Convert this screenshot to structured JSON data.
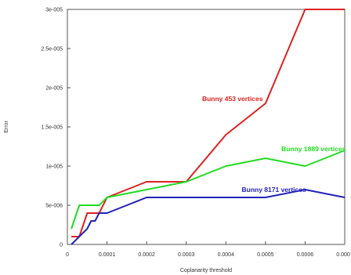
{
  "chart_data": {
    "type": "line",
    "title": "",
    "xlabel": "Coplanarity threshold",
    "ylabel": "Error",
    "xlim": [
      0,
      0.0007
    ],
    "ylim": [
      0,
      3e-05
    ],
    "grid": false,
    "x_ticks": [
      0,
      0.0001,
      0.0002,
      0.0003,
      0.0004,
      0.0005,
      0.0006,
      0.0007
    ],
    "x_tick_labels": [
      "0",
      "0.0001",
      "0.0002",
      "0.0003",
      "0.0004",
      "0.0005",
      "0.0006",
      "0.0007"
    ],
    "y_ticks": [
      0,
      5e-06,
      1e-05,
      1.5e-05,
      2e-05,
      2.5e-05,
      3e-05
    ],
    "y_tick_labels": [
      "0",
      "5e-006",
      "1e-005",
      "1.5e-005",
      "2e-005",
      "2.5e-005",
      "3e-005"
    ],
    "series": [
      {
        "name": "Bunny 453 vertices",
        "color": "#dd2222",
        "label_at": [
          0.00034,
          1.83e-05
        ],
        "x": [
          1e-05,
          3e-05,
          5e-05,
          8e-05,
          0.0001,
          0.0002,
          0.0003,
          0.0004,
          0.0005,
          0.0006,
          0.0007
        ],
        "y": [
          1e-06,
          1e-06,
          4e-06,
          4e-06,
          6e-06,
          8e-06,
          8e-06,
          1.4e-05,
          1.8e-05,
          3e-05,
          3e-05
        ]
      },
      {
        "name": "Bunny 1889 vertices",
        "color": "#22dd22",
        "label_at": [
          0.00054,
          1.19e-05
        ],
        "x": [
          1e-05,
          3e-05,
          6e-05,
          8e-05,
          0.0001,
          0.0002,
          0.0003,
          0.0004,
          0.0005,
          0.0006,
          0.0007
        ],
        "y": [
          2e-06,
          5e-06,
          5e-06,
          5e-06,
          6e-06,
          7e-06,
          8e-06,
          1e-05,
          1.1e-05,
          1e-05,
          1.2e-05
        ]
      },
      {
        "name": "Bunny 8171 vertices",
        "color": "#2222bb",
        "label_at": [
          0.00044,
          6.7e-06
        ],
        "x": [
          1e-05,
          3e-05,
          5e-05,
          5e-05,
          6e-05,
          7e-05,
          8e-05,
          0.0001,
          0.0002,
          0.0003,
          0.0004,
          0.0005,
          0.0006,
          0.0007
        ],
        "y": [
          0,
          1e-06,
          2e-06,
          2e-06,
          3e-06,
          3e-06,
          4e-06,
          4e-06,
          6e-06,
          6e-06,
          6e-06,
          6e-06,
          7e-06,
          6e-06
        ]
      }
    ]
  }
}
